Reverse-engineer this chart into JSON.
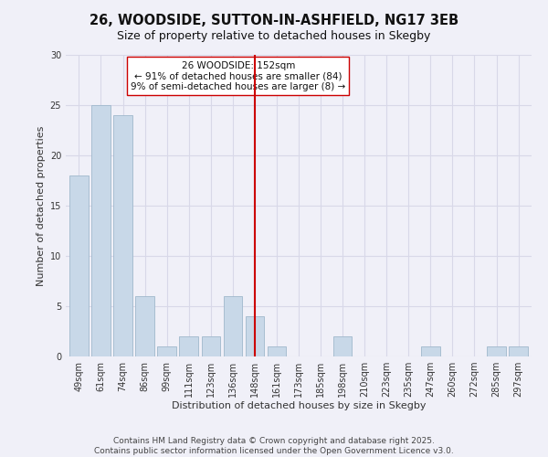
{
  "title": "26, WOODSIDE, SUTTON-IN-ASHFIELD, NG17 3EB",
  "subtitle": "Size of property relative to detached houses in Skegby",
  "xlabel": "Distribution of detached houses by size in Skegby",
  "ylabel": "Number of detached properties",
  "bar_color": "#c8d8e8",
  "bar_edge_color": "#a0b8cc",
  "categories": [
    "49sqm",
    "61sqm",
    "74sqm",
    "86sqm",
    "99sqm",
    "111sqm",
    "123sqm",
    "136sqm",
    "148sqm",
    "161sqm",
    "173sqm",
    "185sqm",
    "198sqm",
    "210sqm",
    "223sqm",
    "235sqm",
    "247sqm",
    "260sqm",
    "272sqm",
    "285sqm",
    "297sqm"
  ],
  "values": [
    18,
    25,
    24,
    6,
    1,
    2,
    2,
    6,
    4,
    1,
    0,
    0,
    2,
    0,
    0,
    0,
    1,
    0,
    0,
    1,
    1
  ],
  "vline_x": 8,
  "vline_color": "#cc0000",
  "ylim": [
    0,
    30
  ],
  "yticks": [
    0,
    5,
    10,
    15,
    20,
    25,
    30
  ],
  "annotation_title": "26 WOODSIDE: 152sqm",
  "annotation_line1": "← 91% of detached houses are smaller (84)",
  "annotation_line2": "9% of semi-detached houses are larger (8) →",
  "footer_line1": "Contains HM Land Registry data © Crown copyright and database right 2025.",
  "footer_line2": "Contains public sector information licensed under the Open Government Licence v3.0.",
  "background_color": "#f0f0f8",
  "grid_color": "#d8d8e8",
  "title_fontsize": 10.5,
  "subtitle_fontsize": 9,
  "axis_label_fontsize": 8,
  "tick_fontsize": 7,
  "annotation_fontsize": 7.5,
  "footer_fontsize": 6.5
}
